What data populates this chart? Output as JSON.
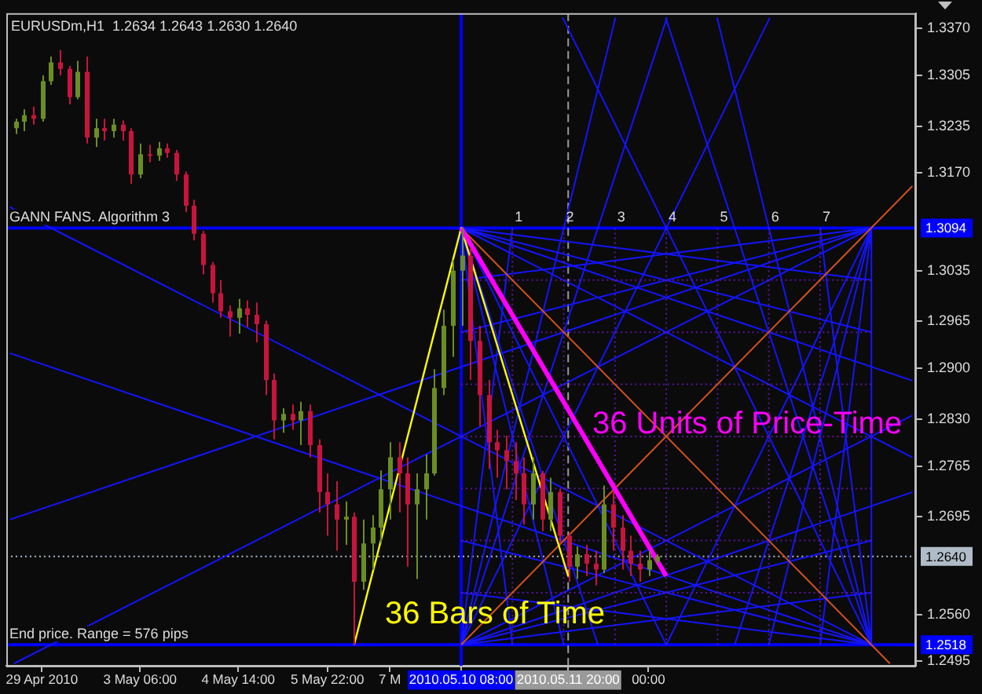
{
  "chart_data": {
    "type": "candlestick",
    "title": "EURUSDm,H1  1.2634 1.2643 1.2630 1.2640",
    "categories": [
      null,
      null,
      null,
      null,
      "29 Apr 2010",
      null,
      null,
      null,
      null,
      null,
      null,
      null,
      null,
      null,
      null,
      "3 May 06:00",
      null,
      null,
      null,
      null,
      null,
      null,
      null,
      null,
      null,
      null,
      "4 May 14:00",
      null,
      null,
      null,
      null,
      null,
      null,
      null,
      null,
      null,
      "5 May 22:00",
      null,
      null,
      null,
      null,
      null,
      null,
      "7 M",
      null,
      null,
      null,
      null,
      null,
      null,
      null,
      "2010.05.10 08:00",
      null,
      null,
      null,
      null,
      null,
      null,
      null,
      null,
      null,
      null,
      null,
      "2010.05.11 20:00",
      null,
      null,
      null,
      null,
      null,
      null,
      null,
      null,
      "00:00",
      null,
      null,
      null,
      null,
      null,
      null,
      null,
      null,
      null,
      null,
      null,
      null,
      null,
      null,
      null,
      null,
      null,
      null,
      null,
      null,
      null,
      null,
      null,
      null,
      null,
      null,
      null,
      null,
      null,
      null
    ],
    "ohlc": [
      null,
      [
        1.3232,
        1.3245,
        1.3224,
        1.3241
      ],
      [
        1.3241,
        1.3258,
        1.3228,
        1.325
      ],
      [
        1.325,
        1.3262,
        1.3237,
        1.3245
      ],
      [
        1.3245,
        1.3305,
        1.3241,
        1.3297
      ],
      [
        1.3297,
        1.3331,
        1.3292,
        1.3323
      ],
      [
        1.3323,
        1.334,
        1.3305,
        1.3314
      ],
      [
        1.3314,
        1.3318,
        1.3265,
        1.3275
      ],
      [
        1.3275,
        1.3325,
        1.3272,
        1.331
      ],
      [
        1.331,
        1.3331,
        1.3211,
        1.3219
      ],
      [
        1.3219,
        1.3245,
        1.3206,
        1.3232
      ],
      [
        1.3232,
        1.3245,
        1.3215,
        1.3228
      ],
      [
        1.3228,
        1.3245,
        1.3219,
        1.3237
      ],
      [
        1.3237,
        1.3243,
        1.3215,
        1.3228
      ],
      [
        1.3228,
        1.3232,
        1.3155,
        1.3168
      ],
      [
        1.3168,
        1.3211,
        1.3163,
        1.3196
      ],
      [
        1.3196,
        1.3209,
        1.3185,
        1.3194
      ],
      [
        1.3194,
        1.3213,
        1.3187,
        1.3204
      ],
      [
        1.3204,
        1.3211,
        1.3191,
        1.3198
      ],
      [
        1.3198,
        1.3202,
        1.3159,
        1.3168
      ],
      [
        1.3168,
        1.3172,
        1.3116,
        1.3125
      ],
      [
        1.3125,
        1.3133,
        1.3077,
        1.3086
      ],
      [
        1.3086,
        1.309,
        1.303,
        1.3043
      ],
      [
        1.3043,
        1.3047,
        1.2991,
        1.3004
      ],
      [
        1.3004,
        1.3022,
        1.297,
        1.2979
      ],
      [
        1.2979,
        1.2987,
        1.2944,
        1.297
      ],
      [
        1.297,
        1.2996,
        1.2948,
        1.2983
      ],
      [
        1.2983,
        1.2994,
        1.2957,
        1.2974
      ],
      [
        1.2974,
        1.2991,
        1.2936,
        1.2961
      ],
      [
        1.2961,
        1.2966,
        1.2863,
        1.2884
      ],
      [
        1.2884,
        1.2893,
        1.2802,
        1.2828
      ],
      [
        1.2828,
        1.2845,
        1.2811,
        1.2837
      ],
      [
        1.2837,
        1.285,
        1.2815,
        1.2828
      ],
      [
        1.2828,
        1.2854,
        1.2794,
        1.2841
      ],
      [
        1.2841,
        1.285,
        1.2777,
        1.2794
      ],
      [
        1.2794,
        1.2802,
        1.2701,
        1.2729
      ],
      [
        1.2729,
        1.2755,
        1.2669,
        1.2712
      ],
      [
        1.2712,
        1.2744,
        1.2648,
        1.2691
      ],
      [
        1.2691,
        1.2716,
        1.2656,
        1.2695
      ],
      [
        1.2695,
        1.2701,
        1.2518,
        1.2605
      ],
      [
        1.2605,
        1.2691,
        1.2594,
        1.2658
      ],
      [
        1.2658,
        1.2697,
        1.2622,
        1.268
      ],
      [
        1.268,
        1.2759,
        1.2658,
        1.2733
      ],
      [
        1.2733,
        1.2798,
        1.2691,
        1.2777
      ],
      [
        1.2777,
        1.2798,
        1.2701,
        1.2755
      ],
      [
        1.2755,
        1.2777,
        1.2626,
        1.2712
      ],
      [
        1.2712,
        1.2755,
        1.2609,
        1.2733
      ],
      [
        1.2733,
        1.2781,
        1.2691,
        1.2755
      ],
      [
        1.2755,
        1.2899,
        1.2752,
        1.2873
      ],
      [
        1.2873,
        1.2981,
        1.2863,
        1.2959
      ],
      [
        1.2959,
        1.305,
        1.2916,
        1.3035
      ],
      [
        1.3035,
        1.3094,
        1.2959,
        1.3056
      ],
      [
        1.3056,
        1.3067,
        1.2884,
        1.2938
      ],
      [
        1.2938,
        1.2959,
        1.282,
        1.2863
      ],
      [
        1.2863,
        1.2884,
        1.2761,
        1.2798
      ],
      [
        1.2798,
        1.2815,
        1.2749,
        1.2787
      ],
      [
        1.2787,
        1.2807,
        1.2733,
        1.2772
      ],
      [
        1.2772,
        1.2798,
        1.2718,
        1.2755
      ],
      [
        1.2755,
        1.2777,
        1.2684,
        1.2712
      ],
      [
        1.2712,
        1.2777,
        1.2691,
        1.2755
      ],
      [
        1.2755,
        1.2758,
        1.2675,
        1.2691
      ],
      [
        1.2691,
        1.2749,
        1.2675,
        1.2729
      ],
      [
        1.2729,
        1.2733,
        1.2658,
        1.2669
      ],
      [
        1.2669,
        1.2673,
        1.2605,
        1.2626
      ],
      [
        1.2626,
        1.2654,
        1.2609,
        1.2643
      ],
      [
        1.2643,
        1.2656,
        1.2613,
        1.263
      ],
      [
        1.263,
        1.2648,
        1.26,
        1.2622
      ],
      [
        1.2622,
        1.2738,
        1.2617,
        1.2712
      ],
      [
        1.2712,
        1.2729,
        1.2648,
        1.268
      ],
      [
        1.268,
        1.2697,
        1.2622,
        1.2648
      ],
      [
        1.2648,
        1.2669,
        1.2613,
        1.263
      ],
      [
        1.263,
        1.2648,
        1.2605,
        1.2622
      ],
      [
        1.2622,
        1.2648,
        1.2613,
        1.2635
      ],
      [
        1.2634,
        1.2643,
        1.263,
        1.264
      ],
      null,
      null,
      null,
      null,
      null,
      null,
      null,
      null,
      null,
      null,
      null,
      null,
      null,
      null,
      null,
      null,
      null,
      null,
      null,
      null,
      null,
      null,
      null,
      null,
      null,
      null,
      null,
      null,
      null
    ],
    "colors": [
      null,
      "#6b8e23",
      "#6b8e23",
      "#c8143c",
      "#6b8e23",
      "#6b8e23",
      "#c8143c",
      "#c8143c",
      "#6b8e23",
      "#c8143c",
      "#6b8e23",
      "#c8143c",
      "#6b8e23",
      "#c8143c",
      "#c8143c",
      "#6b8e23",
      "#c8143c",
      "#6b8e23",
      "#c8143c",
      "#c8143c",
      "#c8143c",
      "#c8143c",
      "#c8143c",
      "#c8143c",
      "#c8143c",
      "#c8143c",
      "#6b8e23",
      "#c8143c",
      "#c8143c",
      "#c8143c",
      "#c8143c",
      "#6b8e23",
      "#c8143c",
      "#6b8e23",
      "#c8143c",
      "#c8143c",
      "#c8143c",
      "#c8143c",
      "#6b8e23",
      "#c8143c",
      "#6b8e23",
      "#6b8e23",
      "#6b8e23",
      "#6b8e23",
      "#c8143c",
      "#c8143c",
      "#6b8e23",
      "#6b8e23",
      "#6b8e23",
      "#6b8e23",
      "#6b8e23",
      "#6b8e23",
      "#c8143c",
      "#c8143c",
      "#c8143c",
      "#c8143c",
      "#c8143c",
      "#c8143c",
      "#c8143c",
      "#6b8e23",
      "#c8143c",
      "#6b8e23",
      "#c8143c",
      "#c8143c",
      "#6b8e23",
      "#c8143c",
      "#c8143c",
      "#6b8e23",
      "#c8143c",
      "#c8143c",
      "#c8143c",
      "#c8143c",
      "#6b8e23",
      "#6b8e23",
      null,
      null,
      null,
      null,
      null,
      null,
      null,
      null,
      null,
      null,
      null,
      null,
      null,
      null,
      null,
      null,
      null,
      null,
      null,
      null,
      null,
      null,
      null,
      null,
      null,
      null,
      null,
      null,
      null
    ],
    "series": [
      {
        "type": "line",
        "axis": "x2",
        "color": "#1414ff",
        "x": [
          8,
          8
        ],
        "values": [
          1.3094,
          1.2518
        ]
      },
      {
        "type": "line",
        "axis": "x2",
        "color": "#1414ff",
        "x": [
          0,
          8
        ],
        "values": [
          1.3094,
          1.3022
        ]
      },
      {
        "type": "line",
        "axis": "x2",
        "color": "#1414ff",
        "x": [
          0,
          8
        ],
        "values": [
          1.3094,
          1.295
        ]
      },
      {
        "type": "line",
        "axis": "x2",
        "color": "#1414ff",
        "x": [
          0,
          8.8
        ],
        "values": [
          1.3094,
          1.2883
        ]
      },
      {
        "type": "line",
        "axis": "x2",
        "color": "#1414ff",
        "x": [
          0,
          8.8
        ],
        "values": [
          1.3094,
          1.2777
        ]
      },
      {
        "type": "line",
        "axis": "x2",
        "color": "#1414ff",
        "x": [
          0,
          4
        ],
        "values": [
          1.3094,
          1.2518
        ]
      },
      {
        "type": "line",
        "axis": "x2",
        "color": "#1414ff",
        "x": [
          0,
          2.667
        ],
        "values": [
          1.3094,
          1.2518
        ]
      },
      {
        "type": "line",
        "axis": "x2",
        "color": "#1414ff",
        "x": [
          0,
          2
        ],
        "values": [
          1.3094,
          1.2518
        ]
      },
      {
        "type": "line",
        "axis": "x2",
        "color": "#1414ff",
        "x": [
          0,
          1
        ],
        "values": [
          1.3094,
          1.2518
        ]
      },
      {
        "type": "line",
        "axis": "x2",
        "color": "#1414ff",
        "x": [
          8,
          0
        ],
        "values": [
          1.3094,
          1.3022
        ]
      },
      {
        "type": "line",
        "axis": "x2",
        "color": "#1414ff",
        "x": [
          8,
          0
        ],
        "values": [
          1.3094,
          1.295
        ]
      },
      {
        "type": "line",
        "axis": "x2",
        "color": "#1414ff",
        "x": [
          8,
          -8.8
        ],
        "values": [
          1.3094,
          1.2691
        ]
      },
      {
        "type": "line",
        "axis": "x2",
        "color": "#1414ff",
        "x": [
          8,
          -8.722
        ],
        "values": [
          1.3094,
          1.2492
        ]
      },
      {
        "type": "line",
        "axis": "x2",
        "color": "#1414ff",
        "x": [
          8,
          4
        ],
        "values": [
          1.3094,
          1.2518
        ]
      },
      {
        "type": "line",
        "axis": "x2",
        "color": "#1414ff",
        "x": [
          8,
          5.333
        ],
        "values": [
          1.3094,
          1.2518
        ]
      },
      {
        "type": "line",
        "axis": "x2",
        "color": "#1414ff",
        "x": [
          8,
          6
        ],
        "values": [
          1.3094,
          1.2518
        ]
      },
      {
        "type": "line",
        "axis": "x2",
        "color": "#1414ff",
        "x": [
          8,
          7
        ],
        "values": [
          1.3094,
          1.2518
        ]
      },
      {
        "type": "line",
        "axis": "x2",
        "color": "#1414ff",
        "x": [
          0,
          8
        ],
        "values": [
          1.2518,
          1.259
        ]
      },
      {
        "type": "line",
        "axis": "x2",
        "color": "#1414ff",
        "x": [
          0,
          8
        ],
        "values": [
          1.2518,
          1.2662
        ]
      },
      {
        "type": "line",
        "axis": "x2",
        "color": "#1414ff",
        "x": [
          0,
          8.8
        ],
        "values": [
          1.2518,
          1.2729
        ]
      },
      {
        "type": "line",
        "axis": "x2",
        "color": "#1414ff",
        "x": [
          0,
          8.8
        ],
        "values": [
          1.2518,
          1.2835
        ]
      },
      {
        "type": "line",
        "axis": "x2",
        "color": "#1414ff",
        "x": [
          0,
          6.021
        ],
        "values": [
          1.2518,
          1.3385
        ]
      },
      {
        "type": "line",
        "axis": "x2",
        "color": "#1414ff",
        "x": [
          0,
          4.014
        ],
        "values": [
          1.2518,
          1.3385
        ]
      },
      {
        "type": "line",
        "axis": "x2",
        "color": "#1414ff",
        "x": [
          0,
          3.01
        ],
        "values": [
          1.2518,
          1.3385
        ]
      },
      {
        "type": "line",
        "axis": "x2",
        "color": "#1414ff",
        "x": [
          0,
          1
        ],
        "values": [
          1.2518,
          1.3094
        ]
      },
      {
        "type": "line",
        "axis": "x2",
        "color": "#1414ff",
        "x": [
          8,
          0
        ],
        "values": [
          1.2518,
          1.259
        ]
      },
      {
        "type": "line",
        "axis": "x2",
        "color": "#1414ff",
        "x": [
          8,
          0
        ],
        "values": [
          1.2518,
          1.2662
        ]
      },
      {
        "type": "line",
        "axis": "x2",
        "color": "#1414ff",
        "x": [
          8,
          -8.8
        ],
        "values": [
          1.2518,
          1.2921
        ]
      },
      {
        "type": "line",
        "axis": "x2",
        "color": "#1414ff",
        "x": [
          8,
          -8.8
        ],
        "values": [
          1.2518,
          1.3123
        ]
      },
      {
        "type": "line",
        "axis": "x2",
        "color": "#1414ff",
        "x": [
          8,
          1.979
        ],
        "values": [
          1.2518,
          1.3385
        ]
      },
      {
        "type": "line",
        "axis": "x2",
        "color": "#1414ff",
        "x": [
          8,
          3.986
        ],
        "values": [
          1.2518,
          1.3385
        ]
      },
      {
        "type": "line",
        "axis": "x2",
        "color": "#1414ff",
        "x": [
          8,
          4.99
        ],
        "values": [
          1.2518,
          1.3385
        ]
      },
      {
        "type": "line",
        "axis": "x2",
        "color": "#1414ff",
        "x": [
          8,
          7
        ],
        "values": [
          1.2518,
          1.3094
        ]
      },
      {
        "type": "line",
        "axis": "x2",
        "color": "#5a16a0",
        "line_style": "dotted",
        "x": [
          1,
          1
        ],
        "values": [
          1.3094,
          1.2518
        ]
      },
      {
        "type": "line",
        "axis": "x2",
        "color": "#5a16a0",
        "line_style": "dotted",
        "x": [
          2,
          2
        ],
        "values": [
          1.3094,
          1.2518
        ]
      },
      {
        "type": "line",
        "axis": "x2",
        "color": "#5a16a0",
        "line_style": "dotted",
        "x": [
          3,
          3
        ],
        "values": [
          1.3094,
          1.2518
        ]
      },
      {
        "type": "line",
        "axis": "x2",
        "color": "#5a16a0",
        "line_style": "dotted",
        "x": [
          4,
          4
        ],
        "values": [
          1.3094,
          1.2518
        ]
      },
      {
        "type": "line",
        "axis": "x2",
        "color": "#5a16a0",
        "line_style": "dotted",
        "x": [
          5,
          5
        ],
        "values": [
          1.3094,
          1.2518
        ]
      },
      {
        "type": "line",
        "axis": "x2",
        "color": "#5a16a0",
        "line_style": "dotted",
        "x": [
          6,
          6
        ],
        "values": [
          1.3094,
          1.2518
        ]
      },
      {
        "type": "line",
        "axis": "x2",
        "color": "#5a16a0",
        "line_style": "dotted",
        "x": [
          7,
          7
        ],
        "values": [
          1.3094,
          1.2518
        ]
      },
      {
        "type": "line",
        "axis": "x2",
        "color": "#5a16a0",
        "line_style": "dotted",
        "x": [
          0,
          8
        ],
        "values": [
          1.3022,
          1.3022
        ]
      },
      {
        "type": "line",
        "axis": "x2",
        "color": "#5a16a0",
        "line_style": "dotted",
        "x": [
          0,
          8
        ],
        "values": [
          1.295,
          1.295
        ]
      },
      {
        "type": "line",
        "axis": "x2",
        "color": "#5a16a0",
        "line_style": "dotted",
        "x": [
          0,
          8
        ],
        "values": [
          1.2878,
          1.2878
        ]
      },
      {
        "type": "line",
        "axis": "x2",
        "color": "#5a16a0",
        "line_style": "dotted",
        "x": [
          0,
          8
        ],
        "values": [
          1.2806,
          1.2806
        ]
      },
      {
        "type": "line",
        "axis": "x2",
        "color": "#5a16a0",
        "line_style": "dotted",
        "x": [
          0,
          8
        ],
        "values": [
          1.2734,
          1.2734
        ]
      },
      {
        "type": "line",
        "axis": "x2",
        "color": "#5a16a0",
        "line_style": "dotted",
        "x": [
          0,
          8
        ],
        "values": [
          1.2662,
          1.2662
        ]
      },
      {
        "type": "line",
        "axis": "x2",
        "color": "#5a16a0",
        "line_style": "dotted",
        "x": [
          0,
          8
        ],
        "values": [
          1.259,
          1.259
        ]
      },
      {
        "type": "line",
        "axis": "x2",
        "color": "#d2501e",
        "x": [
          0,
          8.8
        ],
        "values": [
          1.2518,
          1.3152
        ]
      },
      {
        "type": "line",
        "axis": "x2",
        "color": "#d2501e",
        "x": [
          0,
          8.361
        ],
        "values": [
          1.3094,
          1.2492
        ]
      },
      {
        "type": "line",
        "axis": "x2",
        "name": "36 Bars of Time",
        "color": "#ffff00",
        "x": [
          -2.087,
          0,
          2.087
        ],
        "values": [
          1.2518,
          1.3094,
          1.2613
        ]
      },
      {
        "type": "line",
        "axis": "x2",
        "name": "36 Units of Price-Time",
        "color": "#ff00ff",
        "x": [
          0,
          4
        ],
        "values": [
          1.3094,
          1.2613
        ]
      }
    ],
    "x2lim": [
      -8.87,
      8.87
    ],
    "x2ticks": [
      1,
      2,
      3,
      4,
      5,
      6,
      7
    ],
    "ylim": [
      1.2489,
      1.3391
    ],
    "yticks": [
      {
        "value": 1.337,
        "label": "1.3370"
      },
      1.3305,
      1.3235,
      {
        "value": 1.317,
        "label": "1.3170"
      },
      1.3035,
      1.2965,
      {
        "value": 1.29,
        "label": "1.2900"
      },
      {
        "value": 1.283,
        "label": "1.2830"
      },
      1.2765,
      1.2695,
      {
        "value": 1.256,
        "label": "1.2560"
      },
      1.2495
    ],
    "ref_lines": [
      {
        "axis": "y",
        "value": 1.3094,
        "label": "1.3094",
        "color": "#0000ff"
      },
      {
        "axis": "y",
        "value": 1.2518,
        "label": "1.2518",
        "color": "#0000ff"
      },
      {
        "axis": "y",
        "value": 1.264,
        "label": "1.2640",
        "color": "#b0bcc8",
        "line_style": "dotted"
      },
      {
        "axis": "x",
        "value": "2010.05.10 08:00",
        "color": "#0000ff"
      },
      {
        "axis": "x",
        "value": "2010.05.11 20:00",
        "color": "#9a9a9a",
        "line_style": "dashed"
      }
    ],
    "annotations": [
      {
        "text": "GANN FANS. Algorithm 3",
        "y": 1.3094
      },
      {
        "text": "End price. Range = 576 pips",
        "y": 1.2518
      }
    ]
  }
}
